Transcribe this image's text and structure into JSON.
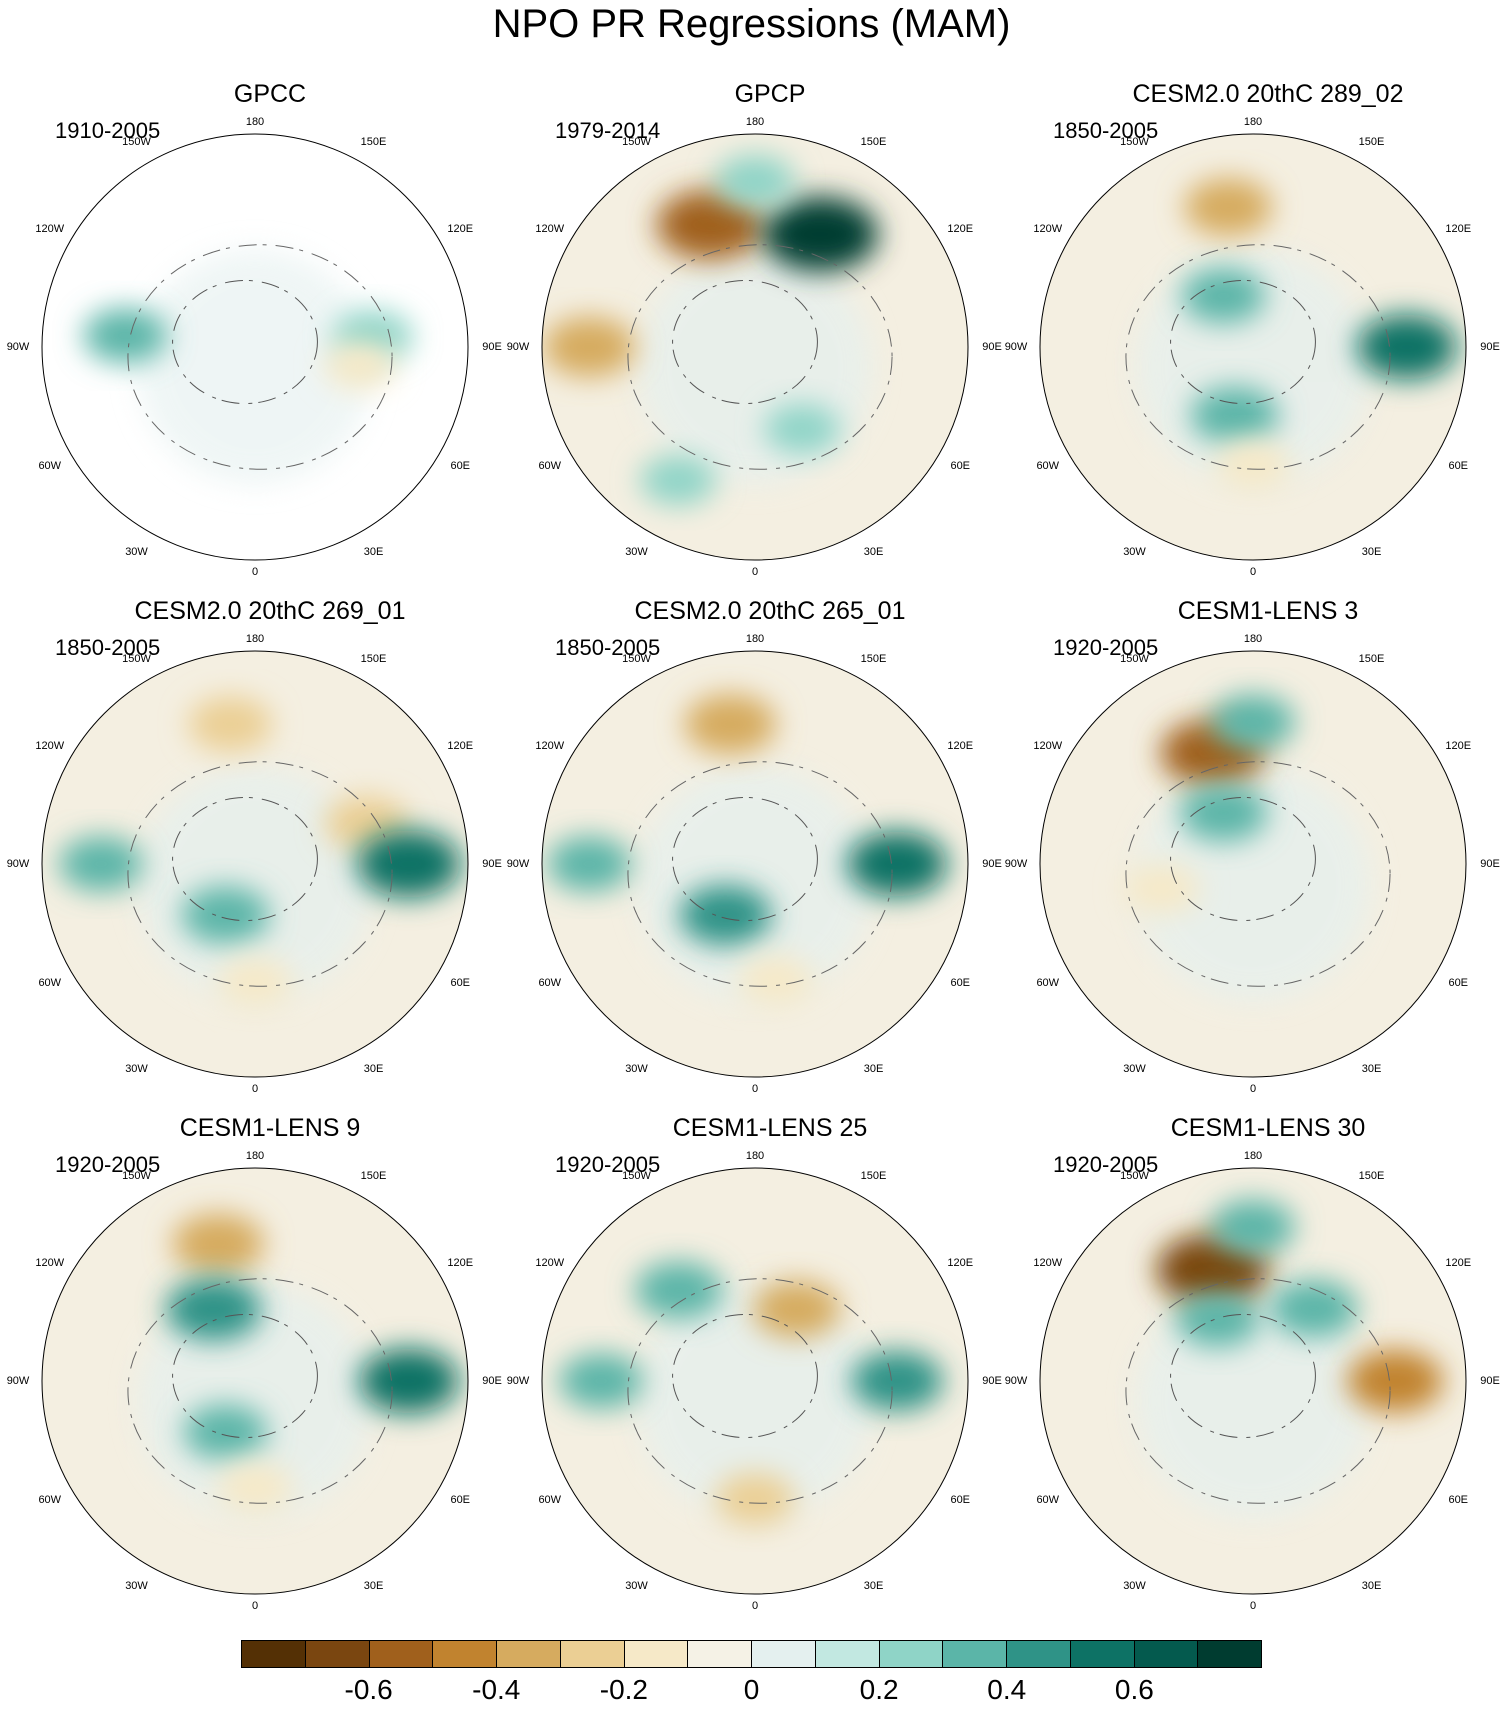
{
  "title": "NPO PR Regressions (MAM)",
  "longitude_labels": [
    "180",
    "150E",
    "120E",
    "90E",
    "60E",
    "30E",
    "0",
    "30W",
    "60W",
    "90W",
    "120W",
    "150W"
  ],
  "panels": [
    {
      "title": "GPCC",
      "period": "1910-2005",
      "missing_data": true,
      "anomalies": [
        {
          "lon": -95,
          "lat": 35,
          "v": 0.3
        },
        {
          "lon": 95,
          "lat": 40,
          "v": 0.25
        },
        {
          "lon": 80,
          "lat": 45,
          "v": -0.15
        }
      ]
    },
    {
      "title": "GPCP",
      "period": "1979-2014",
      "missing_data": false,
      "anomalies": [
        {
          "lon": -160,
          "lat": 35,
          "v": -0.6
        },
        {
          "lon": 150,
          "lat": 35,
          "v": 0.7
        },
        {
          "lon": -90,
          "lat": 20,
          "v": -0.4
        },
        {
          "lon": 180,
          "lat": 20,
          "v": 0.25
        },
        {
          "lon": -30,
          "lat": 25,
          "v": 0.2
        },
        {
          "lon": 30,
          "lat": 50,
          "v": 0.2
        }
      ]
    },
    {
      "title": "CESM2.0 20thC 289_02",
      "period": "1850-2005",
      "missing_data": false,
      "anomalies": [
        {
          "lon": -170,
          "lat": 30,
          "v": -0.35
        },
        {
          "lon": 90,
          "lat": 25,
          "v": 0.5
        },
        {
          "lon": -15,
          "lat": 60,
          "v": 0.35
        },
        {
          "lon": -150,
          "lat": 65,
          "v": 0.3
        },
        {
          "lon": 0,
          "lat": 40,
          "v": -0.2
        }
      ]
    },
    {
      "title": "CESM2.0 20thC 269_01",
      "period": "1850-2005",
      "missing_data": false,
      "anomalies": [
        {
          "lon": -170,
          "lat": 30,
          "v": -0.3
        },
        {
          "lon": 110,
          "lat": 40,
          "v": -0.3
        },
        {
          "lon": 90,
          "lat": 25,
          "v": 0.55
        },
        {
          "lon": -30,
          "lat": 65,
          "v": 0.35
        },
        {
          "lon": -90,
          "lat": 25,
          "v": 0.3
        },
        {
          "lon": 0,
          "lat": 40,
          "v": -0.2
        }
      ]
    },
    {
      "title": "CESM2.0 20thC 265_01",
      "period": "1850-2005",
      "missing_data": false,
      "anomalies": [
        {
          "lon": -170,
          "lat": 30,
          "v": -0.4
        },
        {
          "lon": 90,
          "lat": 30,
          "v": 0.5
        },
        {
          "lon": -30,
          "lat": 65,
          "v": 0.4
        },
        {
          "lon": -90,
          "lat": 20,
          "v": 0.3
        },
        {
          "lon": 10,
          "lat": 40,
          "v": -0.2
        }
      ]
    },
    {
      "title": "CESM1-LENS 3",
      "period": "1920-2005",
      "missing_data": false,
      "anomalies": [
        {
          "lon": -160,
          "lat": 40,
          "v": -0.55
        },
        {
          "lon": 180,
          "lat": 30,
          "v": 0.3
        },
        {
          "lon": -150,
          "lat": 65,
          "v": 0.35
        },
        {
          "lon": -75,
          "lat": 50,
          "v": -0.2
        }
      ]
    },
    {
      "title": "CESM1-LENS 9",
      "period": "1920-2005",
      "missing_data": false,
      "anomalies": [
        {
          "lon": -165,
          "lat": 30,
          "v": -0.4
        },
        {
          "lon": -150,
          "lat": 55,
          "v": 0.45
        },
        {
          "lon": 90,
          "lat": 25,
          "v": 0.5
        },
        {
          "lon": -30,
          "lat": 65,
          "v": 0.3
        },
        {
          "lon": 0,
          "lat": 45,
          "v": -0.2
        }
      ]
    },
    {
      "title": "CESM1-LENS 25",
      "period": "1920-2005",
      "missing_data": false,
      "anomalies": [
        {
          "lon": -140,
          "lat": 40,
          "v": 0.35
        },
        {
          "lon": 150,
          "lat": 55,
          "v": -0.35
        },
        {
          "lon": 90,
          "lat": 30,
          "v": 0.4
        },
        {
          "lon": -90,
          "lat": 25,
          "v": 0.3
        },
        {
          "lon": 0,
          "lat": 40,
          "v": -0.25
        }
      ]
    },
    {
      "title": "CESM1-LENS 30",
      "period": "1920-2005",
      "missing_data": false,
      "anomalies": [
        {
          "lon": -160,
          "lat": 40,
          "v": -0.65
        },
        {
          "lon": 180,
          "lat": 25,
          "v": 0.3
        },
        {
          "lon": 140,
          "lat": 50,
          "v": 0.35
        },
        {
          "lon": 90,
          "lat": 30,
          "v": -0.45
        },
        {
          "lon": -150,
          "lat": 60,
          "v": 0.3
        }
      ]
    }
  ],
  "colorbar": {
    "colors": [
      "#543005",
      "#7a4610",
      "#a0601c",
      "#c1832f",
      "#d6ab5f",
      "#ebcf94",
      "#f6e9c8",
      "#f5f2e6",
      "#e4f0ef",
      "#c2e8e1",
      "#8fd4c7",
      "#5bb5a8",
      "#2f9387",
      "#0d7265",
      "#045a4e",
      "#003c30"
    ],
    "tick_values": [
      -0.6,
      -0.4,
      -0.2,
      0,
      0.2,
      0.4,
      0.6
    ],
    "tick_labels": [
      "-0.6",
      "-0.4",
      "-0.2",
      "0",
      "0.2",
      "0.4",
      "0.6"
    ]
  }
}
